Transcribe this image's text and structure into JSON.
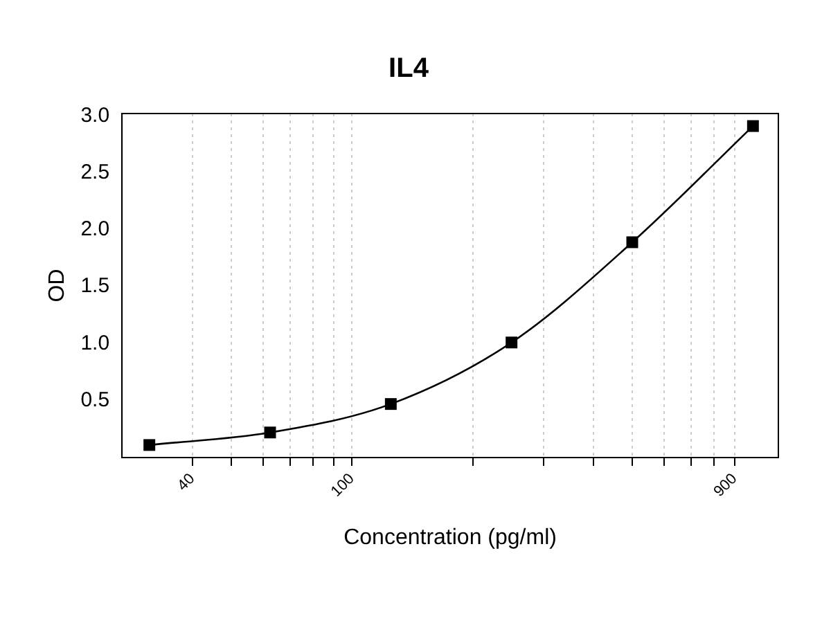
{
  "chart_data": {
    "type": "line",
    "title": "IL4",
    "xlabel": "Concentration (pg/ml)",
    "ylabel": "OD",
    "x": [
      31.25,
      62.5,
      125,
      250,
      500,
      1000
    ],
    "series": [
      {
        "color": "#000000",
        "values": [
          0.11,
          0.22,
          0.47,
          1.01,
          1.89,
          2.91
        ]
      }
    ],
    "log": "x",
    "xlim": [
      26.7,
      1157
    ],
    "ylim": [
      0,
      3.02
    ],
    "xticks": [
      40,
      {
        "value": 50,
        "label": null
      },
      {
        "value": 60,
        "label": null
      },
      {
        "value": 70,
        "label": null
      },
      {
        "value": 80,
        "label": null
      },
      {
        "value": 90,
        "label": null
      },
      100,
      {
        "value": 200,
        "label": null
      },
      {
        "value": 300,
        "label": null
      },
      {
        "value": 400,
        "label": null
      },
      {
        "value": 500,
        "label": null
      },
      {
        "value": 600,
        "label": null
      },
      {
        "value": 700,
        "label": null
      },
      {
        "value": 800,
        "label": null
      },
      900
    ],
    "yticks": [
      0.5,
      {
        "value": 1,
        "label": "1.0"
      },
      1.5,
      {
        "value": 2,
        "label": "2.0"
      },
      2.5,
      {
        "value": 3,
        "label": "3.0"
      }
    ],
    "grid": "x",
    "legend": false,
    "marker": "square",
    "line_style": "solid"
  }
}
